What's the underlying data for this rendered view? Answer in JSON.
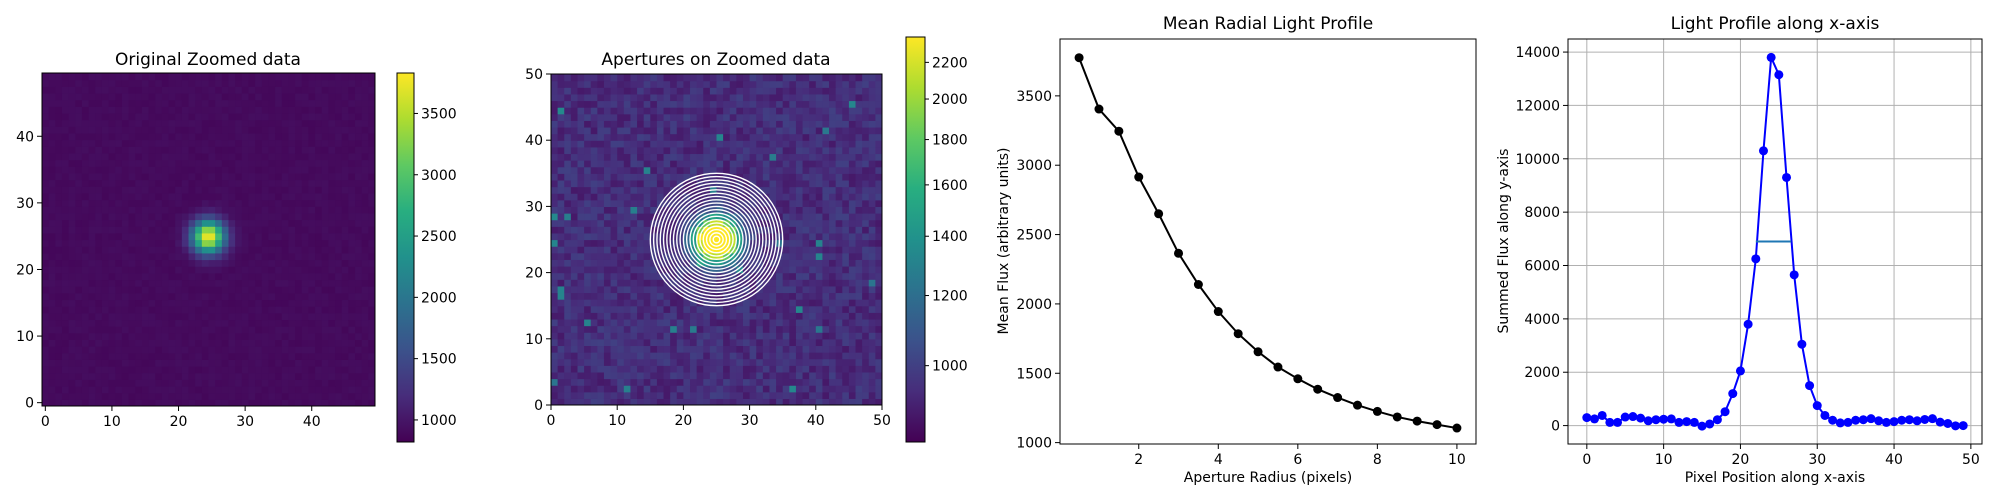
{
  "chart_data": [
    {
      "type": "heatmap",
      "title": "Original Zoomed data",
      "xlabel": "",
      "ylabel": "",
      "xlim": [
        -0.5,
        49.5
      ],
      "ylim": [
        -0.5,
        49.5
      ],
      "xticks": [
        0,
        10,
        20,
        30,
        40
      ],
      "yticks": [
        0,
        10,
        20,
        30,
        40
      ],
      "colormap": "viridis",
      "vmin": 820,
      "vmax": 3830,
      "colorbar_ticks": [
        1000,
        1500,
        2000,
        2500,
        3000,
        3500
      ],
      "source": {
        "center": [
          24.5,
          25
        ],
        "peak": 3830,
        "sigma": 1.7,
        "background": 900
      },
      "grid": false
    },
    {
      "type": "heatmap",
      "title": "Apertures on Zoomed data",
      "xlabel": "",
      "ylabel": "",
      "xlim": [
        0,
        50
      ],
      "ylim": [
        0,
        50
      ],
      "xticks": [
        0,
        10,
        20,
        30,
        40,
        50
      ],
      "yticks": [
        0,
        10,
        20,
        30,
        40,
        50
      ],
      "colormap": "viridis",
      "color_scale": "log",
      "vmin": 820,
      "vmax": 2350,
      "colorbar_ticks": [
        1000,
        1200,
        1400,
        1600,
        1800,
        2000,
        2200
      ],
      "aperture_center": [
        25,
        25
      ],
      "aperture_radii": [
        0.5,
        1,
        1.5,
        2,
        2.5,
        3,
        3.5,
        4,
        4.5,
        5,
        5.5,
        6,
        6.5,
        7,
        7.5,
        8,
        8.5,
        9,
        9.5,
        10
      ],
      "aperture_color": "#ffffff",
      "grid": false
    },
    {
      "type": "line",
      "title": "Mean Radial Light Profile",
      "xlabel": "Aperture Radius (pixels)",
      "ylabel": "Mean Flux (arbitrary units)",
      "xlim": [
        0.02,
        10.48
      ],
      "ylim": [
        990,
        3910
      ],
      "xticks": [
        2,
        4,
        6,
        8,
        10
      ],
      "yticks": [
        1000,
        1500,
        2000,
        2500,
        3000,
        3500
      ],
      "series": [
        {
          "color": "#000000",
          "marker": "circle",
          "x": [
            0.5,
            1.0,
            1.5,
            2.0,
            2.5,
            3.0,
            3.5,
            4.0,
            4.5,
            5.0,
            5.5,
            6.0,
            6.5,
            7.0,
            7.5,
            8.0,
            8.5,
            9.0,
            9.5,
            10.0
          ],
          "y": [
            3775,
            3405,
            3245,
            2915,
            2650,
            2365,
            2140,
            1945,
            1785,
            1655,
            1545,
            1460,
            1385,
            1325,
            1270,
            1225,
            1185,
            1155,
            1130,
            1105
          ]
        }
      ],
      "grid": false
    },
    {
      "type": "line",
      "title": "Light Profile along x-axis",
      "xlabel": "Pixel Position along x-axis",
      "ylabel": "Summed Flux along y-axis",
      "xlim": [
        -2.45,
        51.45
      ],
      "ylim": [
        -690,
        14490
      ],
      "xticks": [
        0,
        10,
        20,
        30,
        40,
        50
      ],
      "yticks": [
        0,
        2000,
        4000,
        6000,
        8000,
        10000,
        12000,
        14000
      ],
      "series": [
        {
          "color": "#0000ff",
          "marker": "circle",
          "x": [
            0,
            1,
            2,
            3,
            4,
            5,
            6,
            7,
            8,
            9,
            10,
            11,
            12,
            13,
            14,
            15,
            16,
            17,
            18,
            19,
            20,
            21,
            22,
            23,
            24,
            25,
            26,
            27,
            28,
            29,
            30,
            31,
            32,
            33,
            34,
            35,
            36,
            37,
            38,
            39,
            40,
            41,
            42,
            43,
            44,
            45,
            46,
            47,
            48,
            49
          ],
          "y": [
            300,
            250,
            380,
            120,
            120,
            320,
            340,
            280,
            180,
            220,
            240,
            250,
            120,
            150,
            120,
            -20,
            60,
            220,
            520,
            1200,
            2050,
            3800,
            6250,
            10300,
            13800,
            13150,
            9300,
            5650,
            3050,
            1500,
            750,
            380,
            200,
            100,
            120,
            200,
            220,
            260,
            180,
            120,
            150,
            200,
            220,
            180,
            230,
            260,
            130,
            80,
            -10,
            0
          ]
        }
      ],
      "fwhm_line": {
        "x": [
          22.0,
          26.6
        ],
        "y": 6900,
        "color": "#1f77b4"
      },
      "grid": true
    }
  ]
}
